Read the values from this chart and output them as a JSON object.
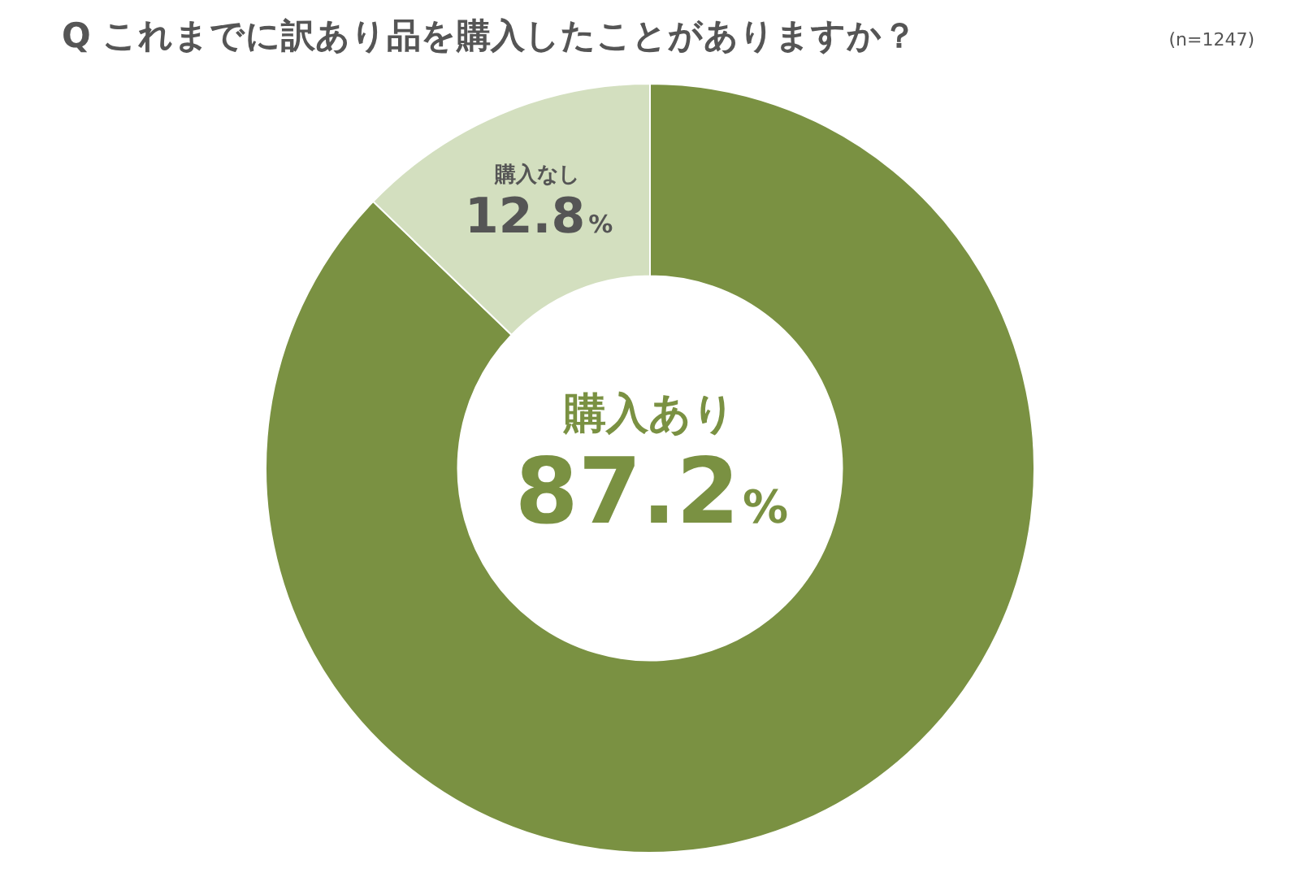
{
  "chart_data": {
    "type": "donut",
    "title": "Q これまでに訳あり品を購入したことがありますか？",
    "annotations": [
      "(n=1247)"
    ],
    "categories": [
      "購入あり",
      "購入なし"
    ],
    "values": [
      87.2,
      12.8
    ],
    "value_labels": [
      "87.2%",
      "12.8%"
    ],
    "colors": [
      "#7a9142",
      "#d3dfbf"
    ],
    "legend": false
  }
}
